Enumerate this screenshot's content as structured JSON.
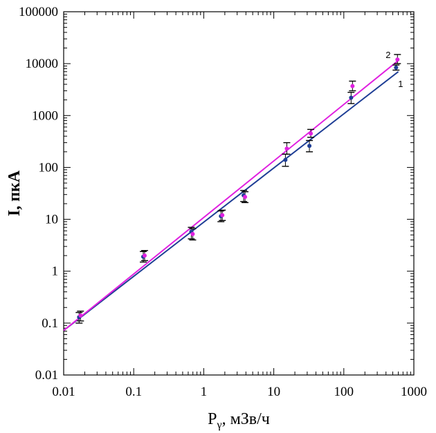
{
  "chart_data": {
    "type": "line",
    "xscale": "log",
    "yscale": "log",
    "xlim": [
      0.01,
      1000
    ],
    "ylim": [
      0.01,
      100000
    ],
    "x_ticks": [
      "0.01",
      "0.1",
      "1",
      "10",
      "100",
      "1000"
    ],
    "y_ticks": [
      "0.01",
      "0.1",
      "1",
      "10",
      "100",
      "1000",
      "10000",
      "100000"
    ],
    "xlabel_main": "P",
    "xlabel_sub": "γ",
    "xlabel_rest": ", мЗв/ч",
    "ylabel": "I, пкА",
    "grid": false,
    "series": [
      {
        "name": "1",
        "color": "#1f3f96",
        "fit": [
          [
            0.01,
            0.072
          ],
          [
            600,
            7000
          ]
        ],
        "points": [
          {
            "x": 0.017,
            "y": 0.13,
            "err": [
              0.1,
              0.16
            ]
          },
          {
            "x": 0.14,
            "y": 1.9,
            "err": [
              1.5,
              2.4
            ]
          },
          {
            "x": 0.68,
            "y": 5.8,
            "err": [
              4.2,
              7.0
            ]
          },
          {
            "x": 1.8,
            "y": 11.5,
            "err": [
              9.0,
              14.5
            ]
          },
          {
            "x": 3.8,
            "y": 29,
            "err": [
              22,
              36
            ]
          },
          {
            "x": 15,
            "y": 140,
            "err": [
              105,
              180
            ]
          },
          {
            "x": 33,
            "y": 260,
            "err": [
              200,
              330
            ]
          },
          {
            "x": 130,
            "y": 2200,
            "err": [
              1700,
              2800
            ]
          },
          {
            "x": 570,
            "y": 8400,
            "err": [
              7500,
              9400
            ]
          }
        ]
      },
      {
        "name": "2",
        "color": "#e020e0",
        "fit": [
          [
            0.01,
            0.072
          ],
          [
            600,
            11500
          ]
        ],
        "points": [
          {
            "x": 0.017,
            "y": 0.14,
            "err": [
              0.11,
              0.17
            ]
          },
          {
            "x": 0.14,
            "y": 2.0,
            "err": [
              1.6,
              2.5
            ]
          },
          {
            "x": 0.68,
            "y": 5.2,
            "err": [
              4.0,
              6.6
            ]
          },
          {
            "x": 1.8,
            "y": 12,
            "err": [
              9.5,
              15
            ]
          },
          {
            "x": 3.8,
            "y": 27,
            "err": [
              21,
              34
            ]
          },
          {
            "x": 15,
            "y": 230,
            "err": [
              180,
              300
            ]
          },
          {
            "x": 33,
            "y": 450,
            "err": [
              380,
              540
            ]
          },
          {
            "x": 130,
            "y": 3700,
            "err": [
              3000,
              4600
            ]
          },
          {
            "x": 570,
            "y": 12000,
            "err": [
              10000,
              15000
            ]
          }
        ]
      }
    ]
  }
}
